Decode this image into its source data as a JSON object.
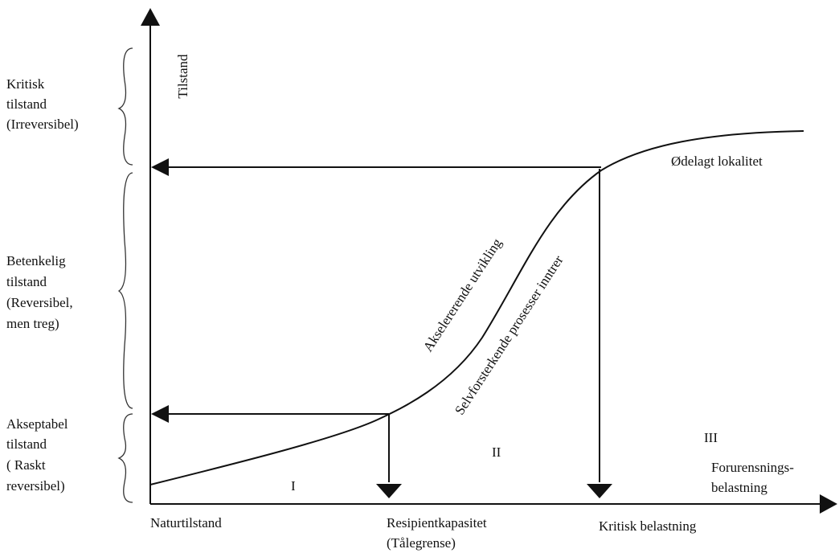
{
  "axes": {
    "y_label": "Tilstand",
    "x_label_lines": [
      "Forurensnings-",
      "belastning"
    ]
  },
  "zones": [
    {
      "lines": [
        "Kritisk",
        "tilstand",
        "(Irreversibel)"
      ]
    },
    {
      "lines": [
        "Betenkelig",
        "tilstand",
        "(Reversibel,",
        "men treg)"
      ]
    },
    {
      "lines": [
        "Akseptabel",
        "tilstand",
        "( Raskt",
        "reversibel)"
      ]
    }
  ],
  "curve_labels": {
    "top": "Ødelagt lokalitet",
    "accelerating": "Akselererende utvikling",
    "self_reinforcing": "Selvforsterkende prosesser inntrer"
  },
  "regions": [
    "I",
    "II",
    "III"
  ],
  "x_points": {
    "natural": "Naturtilstand",
    "capacity_lines": [
      "Resipientkapasitet",
      "(Tålegrense)"
    ],
    "critical": "Kritisk belastning"
  }
}
